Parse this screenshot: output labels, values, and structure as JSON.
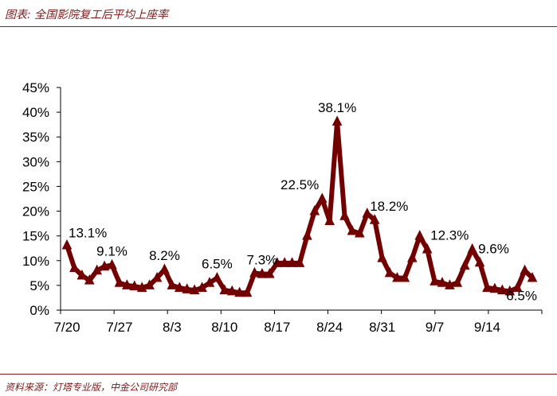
{
  "title": "图表: 全国影院复工后平均上座率",
  "source": "资料来源：灯塔专业版，中金公司研究部",
  "colors": {
    "line": "#730000",
    "rule": "#8a1c1c",
    "text_accent": "#7a1a1a"
  },
  "chart_data": {
    "type": "line",
    "title": "",
    "xlabel": "",
    "ylabel": "",
    "x_tick_labels": [
      "7/20",
      "7/27",
      "8/3",
      "8/10",
      "8/17",
      "8/24",
      "8/31",
      "9/7",
      "9/14"
    ],
    "y_tick_labels": [
      "0%",
      "5%",
      "10%",
      "15%",
      "20%",
      "25%",
      "30%",
      "35%",
      "40%",
      "45%"
    ],
    "ylim": [
      0,
      45
    ],
    "marker": "triangle",
    "grid": false,
    "series": [
      {
        "values": [
          13.1,
          8.5,
          7.0,
          6.0,
          8.0,
          8.8,
          9.1,
          5.5,
          5.0,
          4.8,
          4.5,
          5.0,
          6.5,
          8.2,
          5.0,
          4.5,
          4.2,
          4.0,
          4.5,
          5.5,
          6.5,
          4.0,
          3.8,
          3.5,
          3.5,
          7.5,
          7.3,
          7.3,
          9.5,
          9.5,
          9.5,
          9.5,
          15.0,
          20.0,
          22.5,
          18.0,
          38.1,
          19.0,
          16.0,
          15.5,
          19.5,
          18.2,
          10.5,
          7.5,
          6.5,
          6.5,
          10.5,
          15.0,
          12.3,
          5.8,
          5.5,
          5.0,
          5.5,
          9.0,
          12.3,
          9.6,
          4.5,
          4.3,
          4.0,
          3.8,
          4.5,
          8.0,
          6.5
        ]
      }
    ],
    "data_labels": [
      {
        "text": "13.1%",
        "index": 0
      },
      {
        "text": "9.1%",
        "index": 6
      },
      {
        "text": "8.2%",
        "index": 13
      },
      {
        "text": "6.5%",
        "index": 20
      },
      {
        "text": "7.3%",
        "index": 26
      },
      {
        "text": "22.5%",
        "index": 34
      },
      {
        "text": "38.1%",
        "index": 36
      },
      {
        "text": "18.2%",
        "index": 41
      },
      {
        "text": "12.3%",
        "index": 48
      },
      {
        "text": "9.6%",
        "index": 55
      },
      {
        "text": "6.5%",
        "index": 62
      }
    ]
  }
}
